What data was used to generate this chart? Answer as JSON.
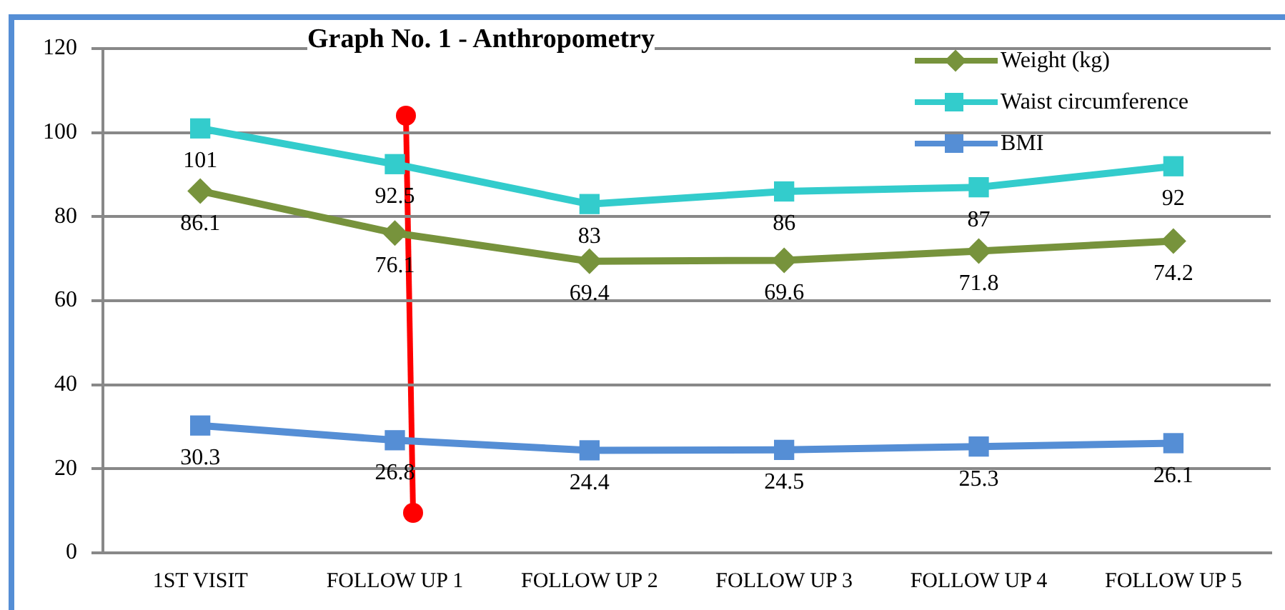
{
  "chart_data": {
    "type": "line",
    "title": "Graph No. 1 - Anthropometry",
    "categories": [
      "1ST VISIT",
      "FOLLOW UP 1",
      "FOLLOW UP 2",
      "FOLLOW UP 3",
      "FOLLOW UP 4",
      "FOLLOW UP 5"
    ],
    "series": [
      {
        "name": "Weight (kg)",
        "color": "#77933c",
        "marker": "diamond",
        "values": [
          86.1,
          76.1,
          69.4,
          69.6,
          71.8,
          74.2
        ]
      },
      {
        "name": "Waist circumference",
        "color": "#33cccc",
        "marker": "square",
        "values": [
          101,
          92.5,
          83,
          86,
          87,
          92
        ]
      },
      {
        "name": "BMI",
        "color": "#558ed5",
        "marker": "square",
        "values": [
          30.3,
          26.8,
          24.4,
          24.5,
          25.3,
          26.1
        ]
      }
    ],
    "ylim": [
      0,
      120
    ],
    "yticks": [
      0,
      20,
      40,
      60,
      80,
      100,
      120
    ],
    "grid": "y",
    "legend": "top right",
    "data_labels": true,
    "line_style": "solid"
  }
}
